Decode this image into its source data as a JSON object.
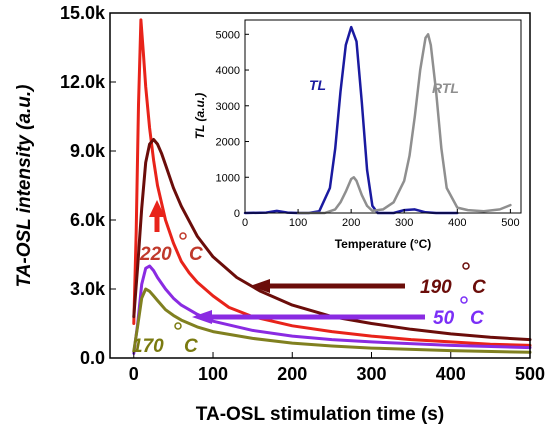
{
  "chart_data": [
    {
      "type": "line",
      "xlabel": "TA-OSL stimulation time (s)",
      "ylabel": "TA-OSL intensity (a.u.)",
      "xlim": [
        -30,
        500
      ],
      "ylim": [
        0,
        15000
      ],
      "x_ticks": [
        "0",
        "100",
        "200",
        "300",
        "400",
        "500"
      ],
      "y_ticks": [
        "0.0",
        "3.0k",
        "6.0k",
        "9.0k",
        "12.0k",
        "15.0k"
      ],
      "series": [
        {
          "temp": "220",
          "color": "#e8231a",
          "x": [
            0,
            3,
            6,
            9,
            12,
            15,
            20,
            25,
            30,
            40,
            50,
            60,
            70,
            80,
            100,
            120,
            150,
            200,
            250,
            300,
            350,
            400,
            450,
            500
          ],
          "values": [
            1500,
            5500,
            11000,
            14700,
            13300,
            11800,
            10000,
            8600,
            7500,
            6000,
            5000,
            4200,
            3700,
            3300,
            2700,
            2200,
            1800,
            1400,
            1150,
            950,
            800,
            700,
            600,
            550
          ]
        },
        {
          "temp": "190",
          "color": "#6b0d0a",
          "x": [
            0,
            5,
            10,
            15,
            20,
            25,
            30,
            35,
            40,
            50,
            60,
            80,
            100,
            130,
            160,
            200,
            250,
            300,
            350,
            400,
            450,
            500
          ],
          "values": [
            1800,
            4000,
            6500,
            8500,
            9300,
            9500,
            9300,
            8900,
            8400,
            7400,
            6600,
            5300,
            4400,
            3500,
            2900,
            2300,
            1800,
            1500,
            1250,
            1050,
            900,
            800
          ]
        },
        {
          "temp": "50",
          "color": "#8a2be2",
          "x": [
            0,
            5,
            10,
            15,
            20,
            25,
            30,
            40,
            50,
            60,
            80,
            100,
            150,
            200,
            250,
            300,
            400,
            500
          ],
          "values": [
            200,
            1500,
            3200,
            3900,
            4000,
            3800,
            3500,
            3000,
            2600,
            2300,
            1900,
            1600,
            1200,
            950,
            800,
            700,
            550,
            450
          ]
        },
        {
          "temp": "170",
          "color": "#808020",
          "x": [
            0,
            5,
            10,
            15,
            20,
            25,
            30,
            40,
            50,
            60,
            80,
            100,
            150,
            200,
            250,
            300,
            400,
            500
          ],
          "values": [
            300,
            1400,
            2600,
            3000,
            2900,
            2700,
            2500,
            2100,
            1850,
            1650,
            1350,
            1150,
            850,
            650,
            520,
            430,
            320,
            250
          ]
        }
      ],
      "annotations": [
        {
          "text": "220",
          "unit": "C",
          "color": "#c0392b"
        },
        {
          "text": "190",
          "unit": "C",
          "color": "#6b0d0a"
        },
        {
          "text": "50",
          "unit": "C",
          "color": "#7b2ff7"
        },
        {
          "text": "170",
          "unit": "C",
          "color": "#7a7a10"
        }
      ]
    },
    {
      "type": "line",
      "xlabel": "Temperature (°C)",
      "ylabel": "TL (a.u.)",
      "xlim": [
        0,
        520
      ],
      "ylim": [
        0,
        5400
      ],
      "x_ticks": [
        "0",
        "100",
        "200",
        "300",
        "400",
        "500"
      ],
      "y_ticks": [
        "0",
        "1000",
        "2000",
        "3000",
        "4000",
        "5000"
      ],
      "series": [
        {
          "name": "TL",
          "color": "#1a1aa0",
          "x": [
            0,
            40,
            60,
            80,
            100,
            120,
            140,
            160,
            170,
            180,
            190,
            200,
            210,
            220,
            230,
            240,
            250,
            280,
            300,
            320,
            340,
            360,
            380,
            400
          ],
          "values": [
            0,
            10,
            60,
            10,
            0,
            0,
            50,
            700,
            1800,
            3400,
            4700,
            5200,
            4800,
            3100,
            1200,
            200,
            0,
            0,
            80,
            100,
            20,
            0,
            0,
            0
          ]
        },
        {
          "name": "RTL",
          "color": "#8f8f8f",
          "x": [
            100,
            150,
            170,
            180,
            190,
            200,
            205,
            210,
            220,
            230,
            240,
            260,
            280,
            300,
            310,
            320,
            330,
            340,
            345,
            350,
            360,
            370,
            380,
            400,
            420,
            450,
            480,
            500
          ],
          "values": [
            0,
            0,
            100,
            300,
            600,
            950,
            1000,
            900,
            500,
            200,
            60,
            100,
            300,
            900,
            1600,
            2700,
            4000,
            4900,
            5000,
            4700,
            3400,
            1800,
            700,
            150,
            80,
            50,
            100,
            220
          ]
        }
      ]
    }
  ]
}
